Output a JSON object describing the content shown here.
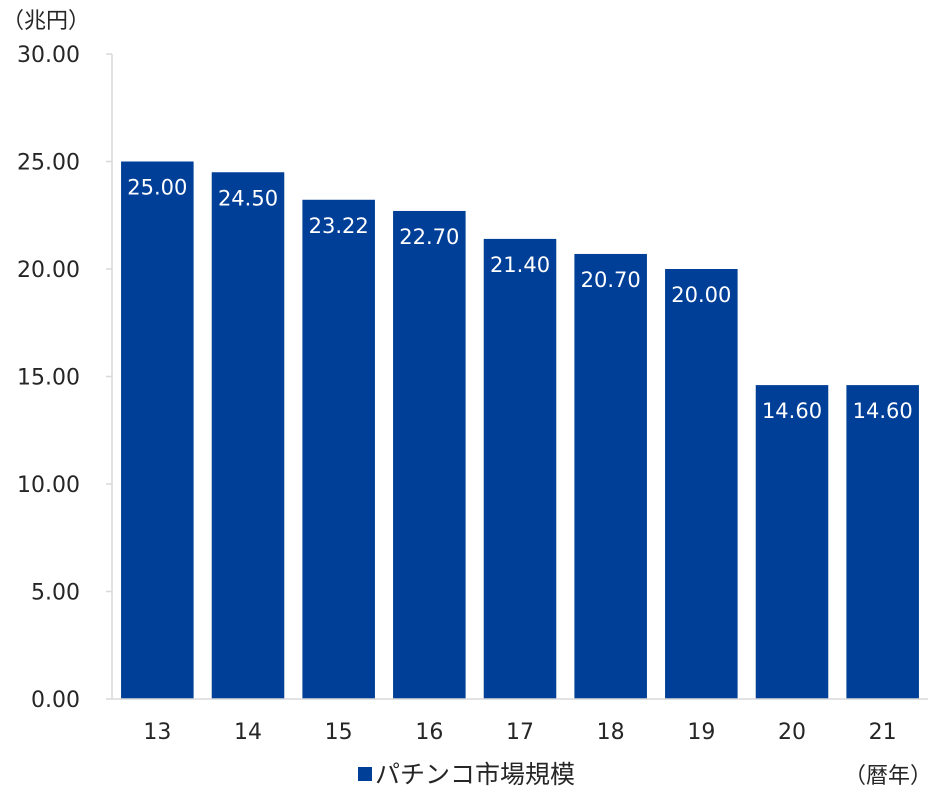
{
  "chart_data": {
    "type": "bar",
    "title": "",
    "y_unit_label": "（兆円）",
    "x_unit_label": "（暦年）",
    "categories": [
      "13",
      "14",
      "15",
      "16",
      "17",
      "18",
      "19",
      "20",
      "21"
    ],
    "series": [
      {
        "name": "パチンコ市場規模",
        "values": [
          25.0,
          24.5,
          23.22,
          22.7,
          21.4,
          20.7,
          20.0,
          14.6,
          14.6
        ],
        "data_labels": [
          "25.00",
          "24.50",
          "23.22",
          "22.70",
          "21.40",
          "20.70",
          "20.00",
          "14.60",
          "14.60"
        ],
        "color": "#003f98"
      }
    ],
    "ylim": [
      0,
      30
    ],
    "y_ticks": [
      "0.00",
      "5.00",
      "10.00",
      "15.00",
      "20.00",
      "25.00",
      "30.00"
    ],
    "grid": false,
    "legend": {
      "position": "bottom",
      "entries": [
        "パチンコ市場規模"
      ]
    },
    "colors": {
      "bar": "#003f98",
      "axis": "#d9d9d9",
      "text": "#262626",
      "data_label": "#ffffff"
    }
  }
}
